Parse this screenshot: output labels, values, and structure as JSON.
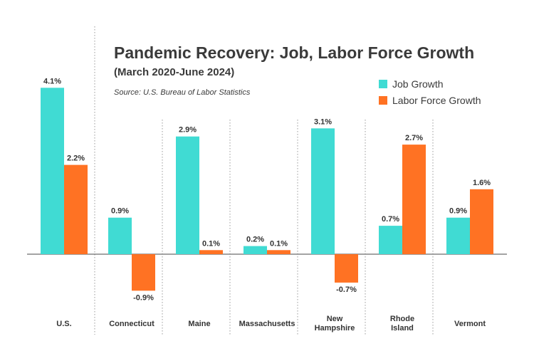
{
  "chart_data": {
    "type": "bar",
    "title": "Pandemic Recovery: Job, Labor Force Growth",
    "subtitle": "(March 2020-June 2024)",
    "source": "Source: U.S. Bureau of Labor Statistics",
    "categories": [
      [
        "U.S."
      ],
      [
        "Connecticut"
      ],
      [
        "Maine"
      ],
      [
        "Massachusetts"
      ],
      [
        "New",
        "Hampshire"
      ],
      [
        "Rhode",
        "Island"
      ],
      [
        "Vermont"
      ]
    ],
    "series": [
      {
        "name": "Job Growth",
        "color": "#40dbd3",
        "values": [
          4.1,
          0.9,
          2.9,
          0.2,
          3.1,
          0.7,
          0.9
        ],
        "labels": [
          "4.1%",
          "0.9%",
          "2.9%",
          "0.2%",
          "3.1%",
          "0.7%",
          "0.9%"
        ]
      },
      {
        "name": "Labor Force Growth",
        "color": "#ff7223",
        "values": [
          2.2,
          -0.9,
          0.1,
          0.1,
          -0.7,
          2.7,
          1.6
        ],
        "labels": [
          "2.2%",
          "-0.9%",
          "0.1%",
          "0.1%",
          "-0.7%",
          "2.7%",
          "1.6%"
        ]
      }
    ],
    "ylim": [
      -1.5,
      5.2
    ],
    "legend_position": "top-right",
    "grid": false
  }
}
